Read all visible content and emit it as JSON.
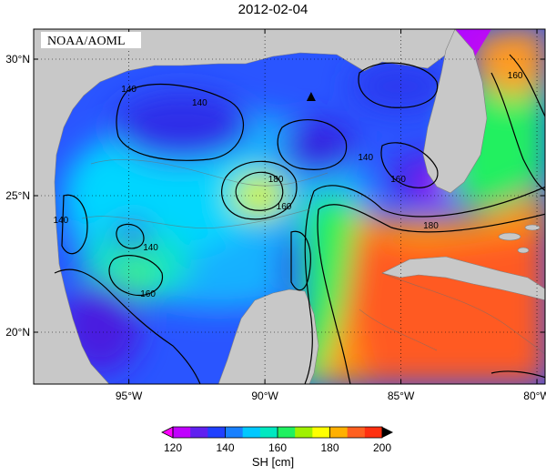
{
  "title": "2012-02-04",
  "credit": "NOAA/AOML",
  "axes": {
    "lon_ticks": [
      {
        "value": -95,
        "label": "95°W"
      },
      {
        "value": -90,
        "label": "90°W"
      },
      {
        "value": -85,
        "label": "85°W"
      },
      {
        "value": -80,
        "label": "80°W"
      }
    ],
    "lat_ticks": [
      {
        "value": 30,
        "label": "30°N"
      },
      {
        "value": 25,
        "label": "25°N"
      },
      {
        "value": 20,
        "label": "20°N"
      }
    ],
    "lon_range": [
      -98.5,
      -79.7
    ],
    "lat_range": [
      18.1,
      31.1
    ],
    "grid": "dotted"
  },
  "colorbar": {
    "ticks": [
      "120",
      "140",
      "160",
      "180",
      "200"
    ],
    "min": 120,
    "max": 200,
    "label": "SH [cm]",
    "colors": [
      "#c000ff",
      "#6020f0",
      "#2040ff",
      "#1880ff",
      "#00c8ff",
      "#00e8c0",
      "#20f060",
      "#a0f000",
      "#ffff00",
      "#ffb000",
      "#ff6020",
      "#ff3010"
    ]
  },
  "contour_labels": [
    {
      "text": "140",
      "lon": -95.0,
      "lat": 28.8
    },
    {
      "text": "140",
      "lon": -92.4,
      "lat": 28.3
    },
    {
      "text": "140",
      "lon": -97.5,
      "lat": 24.0
    },
    {
      "text": "140",
      "lon": -94.2,
      "lat": 23.0
    },
    {
      "text": "140",
      "lon": -86.3,
      "lat": 26.3
    },
    {
      "text": "160",
      "lon": -94.3,
      "lat": 21.3
    },
    {
      "text": "160",
      "lon": -89.3,
      "lat": 24.5
    },
    {
      "text": "180",
      "lon": -89.6,
      "lat": 25.5
    },
    {
      "text": "160",
      "lon": -85.1,
      "lat": 25.5
    },
    {
      "text": "180",
      "lon": -83.9,
      "lat": 23.8
    },
    {
      "text": "160",
      "lon": -80.8,
      "lat": 29.3
    }
  ],
  "marker": {
    "type": "triangle",
    "lon": -88.3,
    "lat": 28.6
  }
}
